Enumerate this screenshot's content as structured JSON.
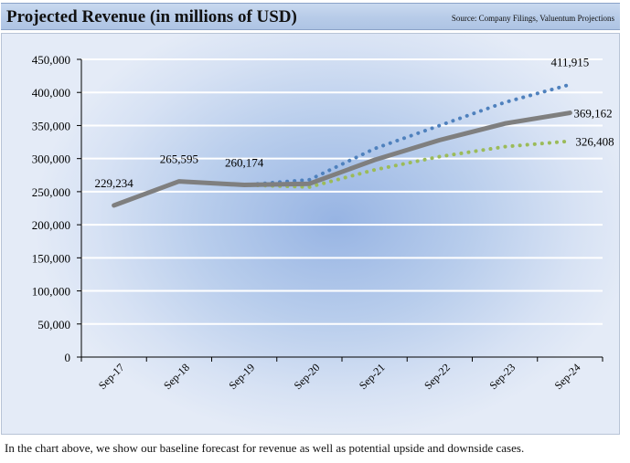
{
  "header": {
    "title": "Projected Revenue (in millions of USD)",
    "source": "Source: Company Filings, Valuentum Projections"
  },
  "caption": "In the chart above, we show our baseline forecast for revenue as well as potential upside and downside cases.",
  "colors": {
    "base": "#7f7f7f",
    "upside": "#4f81bd",
    "downside": "#9bbb59",
    "grid": "#ffffff"
  },
  "chart_data": {
    "type": "line",
    "title": "Projected Revenue (in millions of USD)",
    "xlabel": "",
    "ylabel": "",
    "categories": [
      "Sep-17",
      "Sep-18",
      "Sep-19",
      "Sep-20",
      "Sep-21",
      "Sep-22",
      "Sep-23",
      "Sep-24"
    ],
    "ylim": [
      0,
      450000
    ],
    "yticks": [
      0,
      50000,
      100000,
      150000,
      200000,
      250000,
      300000,
      350000,
      400000,
      450000
    ],
    "ytick_labels": [
      "0",
      "50,000",
      "100,000",
      "150,000",
      "200,000",
      "250,000",
      "300,000",
      "350,000",
      "400,000",
      "450,000"
    ],
    "grid": true,
    "series": [
      {
        "name": "Base",
        "style": "solid",
        "values": [
          229234,
          265595,
          260174,
          262000,
          298000,
          328000,
          353000,
          369162
        ]
      },
      {
        "name": "Upside",
        "style": "dotted",
        "values": [
          229234,
          265595,
          260174,
          268000,
          315000,
          350000,
          385000,
          411915
        ]
      },
      {
        "name": "Downside",
        "style": "dotted",
        "values": [
          229234,
          265595,
          260174,
          257000,
          283000,
          303000,
          318000,
          326408
        ]
      }
    ],
    "data_labels": [
      {
        "text": "229,234",
        "category": "Sep-17",
        "value": 229234
      },
      {
        "text": "265,595",
        "category": "Sep-18",
        "value": 265595
      },
      {
        "text": "260,174",
        "category": "Sep-19",
        "value": 260174
      },
      {
        "text": "411,915",
        "category": "Sep-24",
        "value": 411915
      },
      {
        "text": "369,162",
        "category": "Sep-24",
        "value": 369162
      },
      {
        "text": "326,408",
        "category": "Sep-24",
        "value": 326408
      }
    ]
  }
}
